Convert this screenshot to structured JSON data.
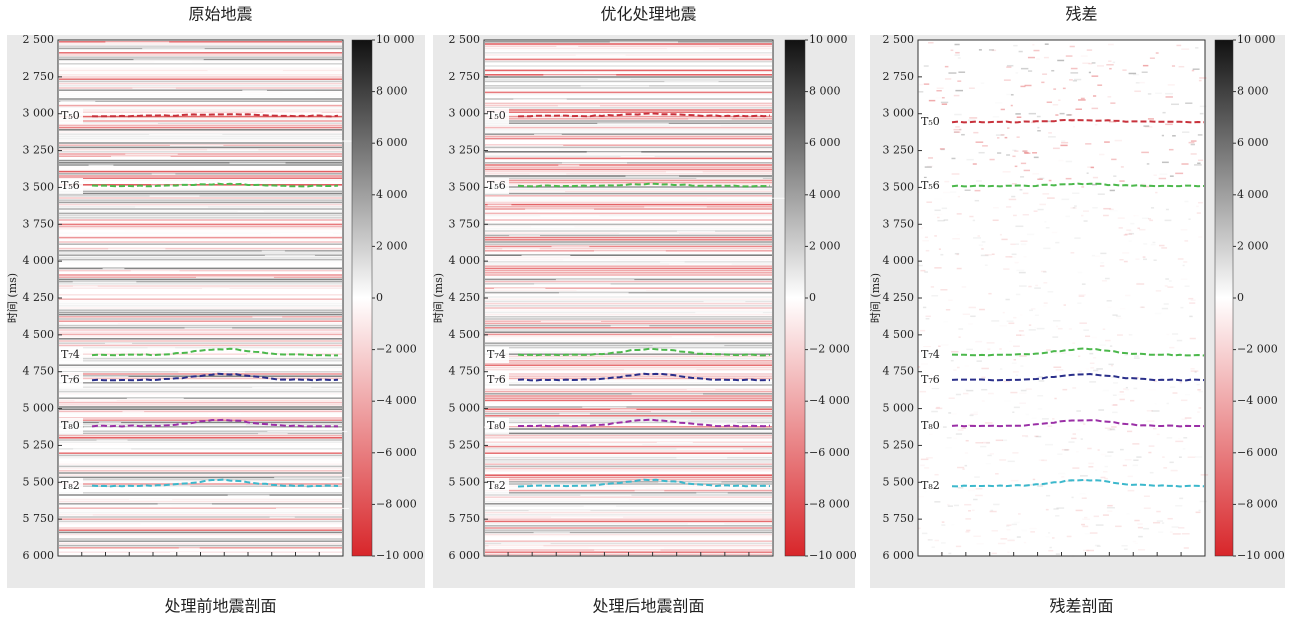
{
  "panels": [
    {
      "title": "原始地震",
      "caption": "处理前地震剖面",
      "y_label": "时间 (ms)",
      "y_ticks": [
        "2 500",
        "2 750",
        "3 000",
        "3 250",
        "3 500",
        "3 750",
        "4 000",
        "4 250",
        "4 500",
        "4 750",
        "5 000",
        "5 250",
        "5 500",
        "5 750",
        "6 000"
      ],
      "colorbar_ticks": [
        "10 000",
        "8 000",
        "6 000",
        "4 000",
        "2 000",
        "0",
        "−2 000",
        "−4 000",
        "−6 000",
        "−8 000",
        "−10 000"
      ],
      "horizons": [
        {
          "label": "T₅0",
          "color": "#c8323c"
        },
        {
          "label": "T₅6",
          "color": "#4cb84c"
        },
        {
          "label": "T₇4",
          "color": "#4cb84c"
        },
        {
          "label": "T₇6",
          "color": "#2a2f8a"
        },
        {
          "label": "T₈0",
          "color": "#9a2fa6"
        },
        {
          "label": "T₈2",
          "color": "#3cb8cc"
        }
      ]
    },
    {
      "title": "优化处理地震",
      "caption": "处理后地震剖面",
      "y_label": "时间 (ms)",
      "y_ticks": [
        "2 500",
        "2 750",
        "3 000",
        "3 250",
        "3 500",
        "3 750",
        "4 000",
        "4 250",
        "4 500",
        "4 750",
        "5 000",
        "5 250",
        "5 500",
        "5 750",
        "6 000"
      ],
      "colorbar_ticks": [
        "10 000",
        "8 000",
        "6 000",
        "4 000",
        "2 000",
        "0",
        "−2 000",
        "−4 000",
        "−6 000",
        "−8 000",
        "−10 000"
      ],
      "horizons": [
        {
          "label": "T₅0",
          "color": "#c8323c"
        },
        {
          "label": "T₅6",
          "color": "#4cb84c"
        },
        {
          "label": "T₇4",
          "color": "#4cb84c"
        },
        {
          "label": "T₇6",
          "color": "#2a2f8a"
        },
        {
          "label": "T₈0",
          "color": "#9a2fa6"
        },
        {
          "label": "T₈2",
          "color": "#3cb8cc"
        }
      ]
    },
    {
      "title": "残差",
      "caption": "残差剖面",
      "y_label": "时间 (ms)",
      "y_ticks": [
        "2 500",
        "2 750",
        "3 000",
        "3 250",
        "3 500",
        "3 750",
        "4 000",
        "4 250",
        "4 500",
        "4 750",
        "5 000",
        "5 250",
        "5 500",
        "5 750",
        "6 000"
      ],
      "colorbar_ticks": [
        "10 000",
        "8 000",
        "6 000",
        "4 000",
        "2 000",
        "0",
        "−2 000",
        "−4 000",
        "−6 000",
        "−8 000",
        "−10 000"
      ],
      "horizons": [
        {
          "label": "T₅0",
          "color": "#c8323c"
        },
        {
          "label": "T₅6",
          "color": "#4cb84c"
        },
        {
          "label": "T₇4",
          "color": "#4cb84c"
        },
        {
          "label": "T₇6",
          "color": "#2a2f8a"
        },
        {
          "label": "T₈0",
          "color": "#9a2fa6"
        },
        {
          "label": "T₈2",
          "color": "#3cb8cc"
        }
      ]
    }
  ]
}
